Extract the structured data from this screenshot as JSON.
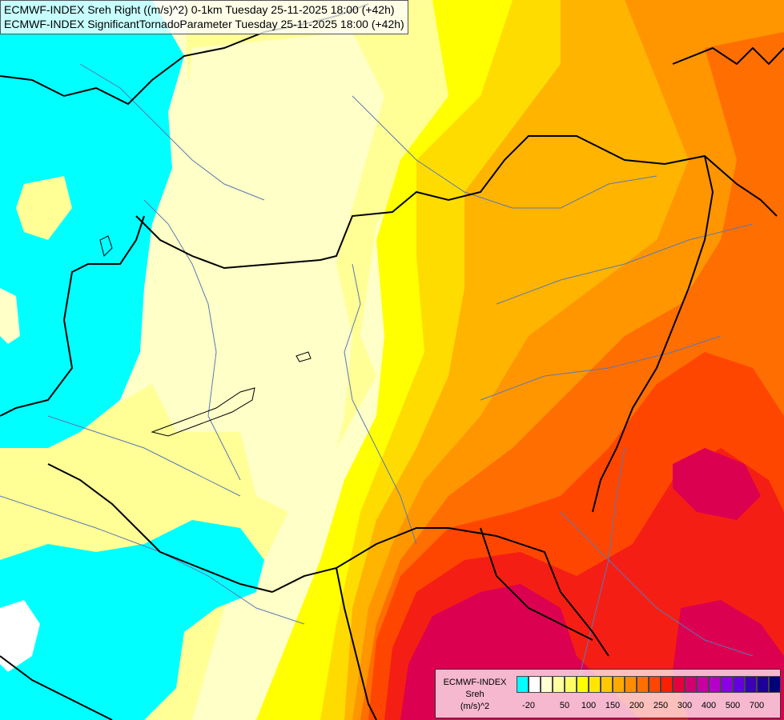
{
  "title": {
    "line1": "ECMWF-INDEX Sreh Right ((m/s)^2) 0-1km Tuesday 25-11-2025 18:00 (+42h)",
    "line2": "ECMWF-INDEX SignificantTornadoParameter Tuesday 25-11-2025 18:00 (+42h)"
  },
  "legend": {
    "title1": "ECMWF-INDEX",
    "title2": "Sreh",
    "title3": "(m/s)^2",
    "colors": [
      "#00ffff",
      "#ffffff",
      "#ffffd2",
      "#ffffa0",
      "#ffff64",
      "#ffff00",
      "#ffe600",
      "#ffc800",
      "#ffaa00",
      "#ff8c00",
      "#ff6e00",
      "#ff4600",
      "#ff1e00",
      "#e6003c",
      "#d2006e",
      "#c800a0",
      "#b400c8",
      "#8c00e6",
      "#6400dc",
      "#3c00b4",
      "#1e0096",
      "#000078"
    ],
    "tick_labels": [
      "-20",
      "50",
      "100",
      "150",
      "200",
      "250",
      "300",
      "400",
      "500",
      "700"
    ]
  },
  "map": {
    "palette": {
      "cyan": "#00ffff",
      "pale": "#ffffc8",
      "light_yellow": "#ffff96",
      "yellow": "#ffff00",
      "gold": "#ffdc00",
      "orange_light": "#ffb400",
      "orange": "#ff9600",
      "orange_dark": "#ff6e00",
      "red_orange": "#ff4600",
      "red": "#f51e14",
      "crimson": "#dc0050",
      "border": "#000000",
      "river": "#5a78b4"
    }
  }
}
